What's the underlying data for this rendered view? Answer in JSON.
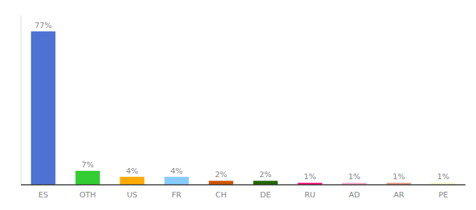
{
  "chart_data": {
    "type": "bar",
    "categories": [
      "ES",
      "OTH",
      "US",
      "FR",
      "CH",
      "DE",
      "RU",
      "AD",
      "AR",
      "PE"
    ],
    "values": [
      77,
      7,
      4,
      4,
      2,
      2,
      1,
      1,
      1,
      1
    ],
    "value_labels": [
      "77%",
      "7%",
      "4%",
      "4%",
      "2%",
      "2%",
      "1%",
      "1%",
      "1%",
      "1%"
    ],
    "colors": [
      "#4e72d4",
      "#33cc33",
      "#ffaa00",
      "#88ccff",
      "#cc5500",
      "#226600",
      "#ff1177",
      "#ffaacc",
      "#e89988",
      "#f5f5cc"
    ],
    "ylim": [
      0,
      85
    ],
    "tick_labels": "x",
    "data_labels": true
  }
}
